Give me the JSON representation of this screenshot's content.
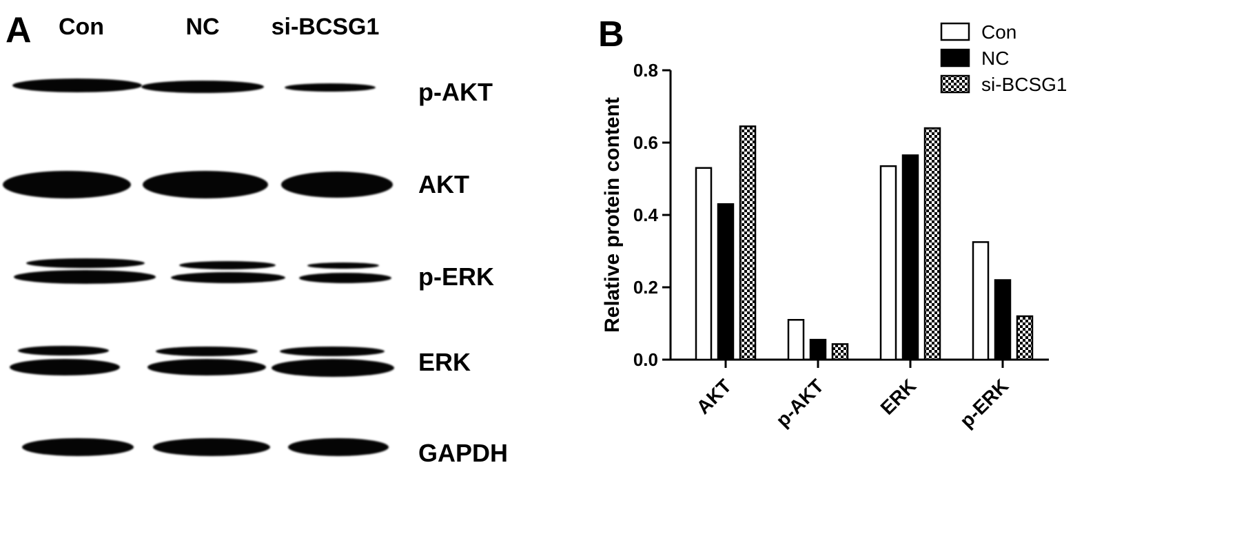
{
  "panel_a": {
    "letter": "A",
    "lanes": [
      "Con",
      "NC",
      "si-BCSG1"
    ],
    "rows": [
      "p-AKT",
      "AKT",
      "p-ERK",
      "ERK",
      "GAPDH"
    ],
    "blot_colors": {
      "band": "#050505",
      "background": "#ffffff"
    }
  },
  "panel_b": {
    "letter": "B"
  },
  "chart_data": {
    "type": "bar",
    "categories": [
      "AKT",
      "p-AKT",
      "ERK",
      "p-ERK"
    ],
    "series": [
      {
        "name": "Con",
        "values": [
          0.53,
          0.11,
          0.535,
          0.325
        ],
        "fill": "#ffffff"
      },
      {
        "name": "NC",
        "values": [
          0.43,
          0.055,
          0.565,
          0.22
        ],
        "fill": "#000000"
      },
      {
        "name": "si-BCSG1",
        "values": [
          0.645,
          0.043,
          0.64,
          0.12
        ],
        "fill": "checker"
      }
    ],
    "ylabel": "Relative protein content",
    "xlabel": "",
    "ylim": [
      0.0,
      0.8
    ],
    "yticks": [
      "0.0",
      "0.2",
      "0.4",
      "0.6",
      "0.8"
    ],
    "grid": false,
    "legend_position": "top-right"
  }
}
